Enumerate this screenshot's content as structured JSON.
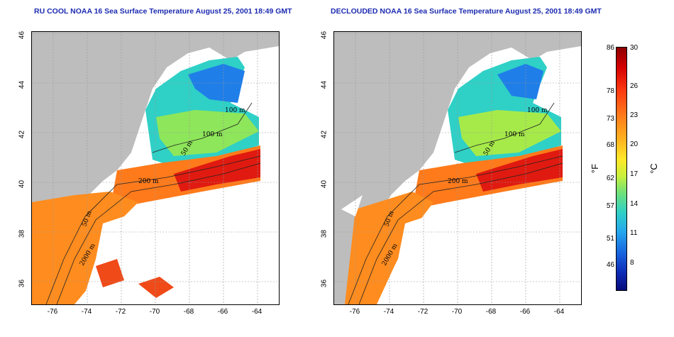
{
  "left_panel": {
    "title": "RU COOL NOAA 16 Sea Surface Temperature August 25, 2001 18:49 GMT",
    "contour_labels": [
      "100 m",
      "100 m",
      "50 m",
      "200 m",
      "50 m",
      "2000 m"
    ]
  },
  "right_panel": {
    "title": "DECLOUDED NOAA 16 Sea Surface Temperature August 25, 2001 18:49 GMT",
    "contour_labels": [
      "100 m",
      "100 m",
      "50 m",
      "200 m",
      "50 m",
      "2000 m"
    ]
  },
  "axes": {
    "x_ticks": [
      "-76",
      "-74",
      "-72",
      "-70",
      "-68",
      "-66",
      "-64"
    ],
    "y_ticks": [
      "46",
      "44",
      "42",
      "40",
      "38",
      "36"
    ],
    "lon_range": [
      -77,
      -63
    ],
    "lat_range": [
      35,
      46
    ],
    "grid": "dotted"
  },
  "colorbar": {
    "fahrenheit_ticks": [
      "86",
      "78",
      "73",
      "68",
      "62",
      "57",
      "51",
      "46"
    ],
    "celsius_ticks": [
      "30",
      "26",
      "23",
      "20",
      "17",
      "14",
      "11",
      "8"
    ],
    "fahrenheit_unit": "°F",
    "celsius_unit": "°C",
    "colors": [
      "#8c0000",
      "#ff3a10",
      "#ffb31f",
      "#ffe82a",
      "#6ee17a",
      "#2fd0c6",
      "#1762de",
      "#070b7a"
    ]
  },
  "colors": {
    "land": "#bdbdbd",
    "cloud": "#ffffff",
    "title": "#1c2bb0"
  }
}
